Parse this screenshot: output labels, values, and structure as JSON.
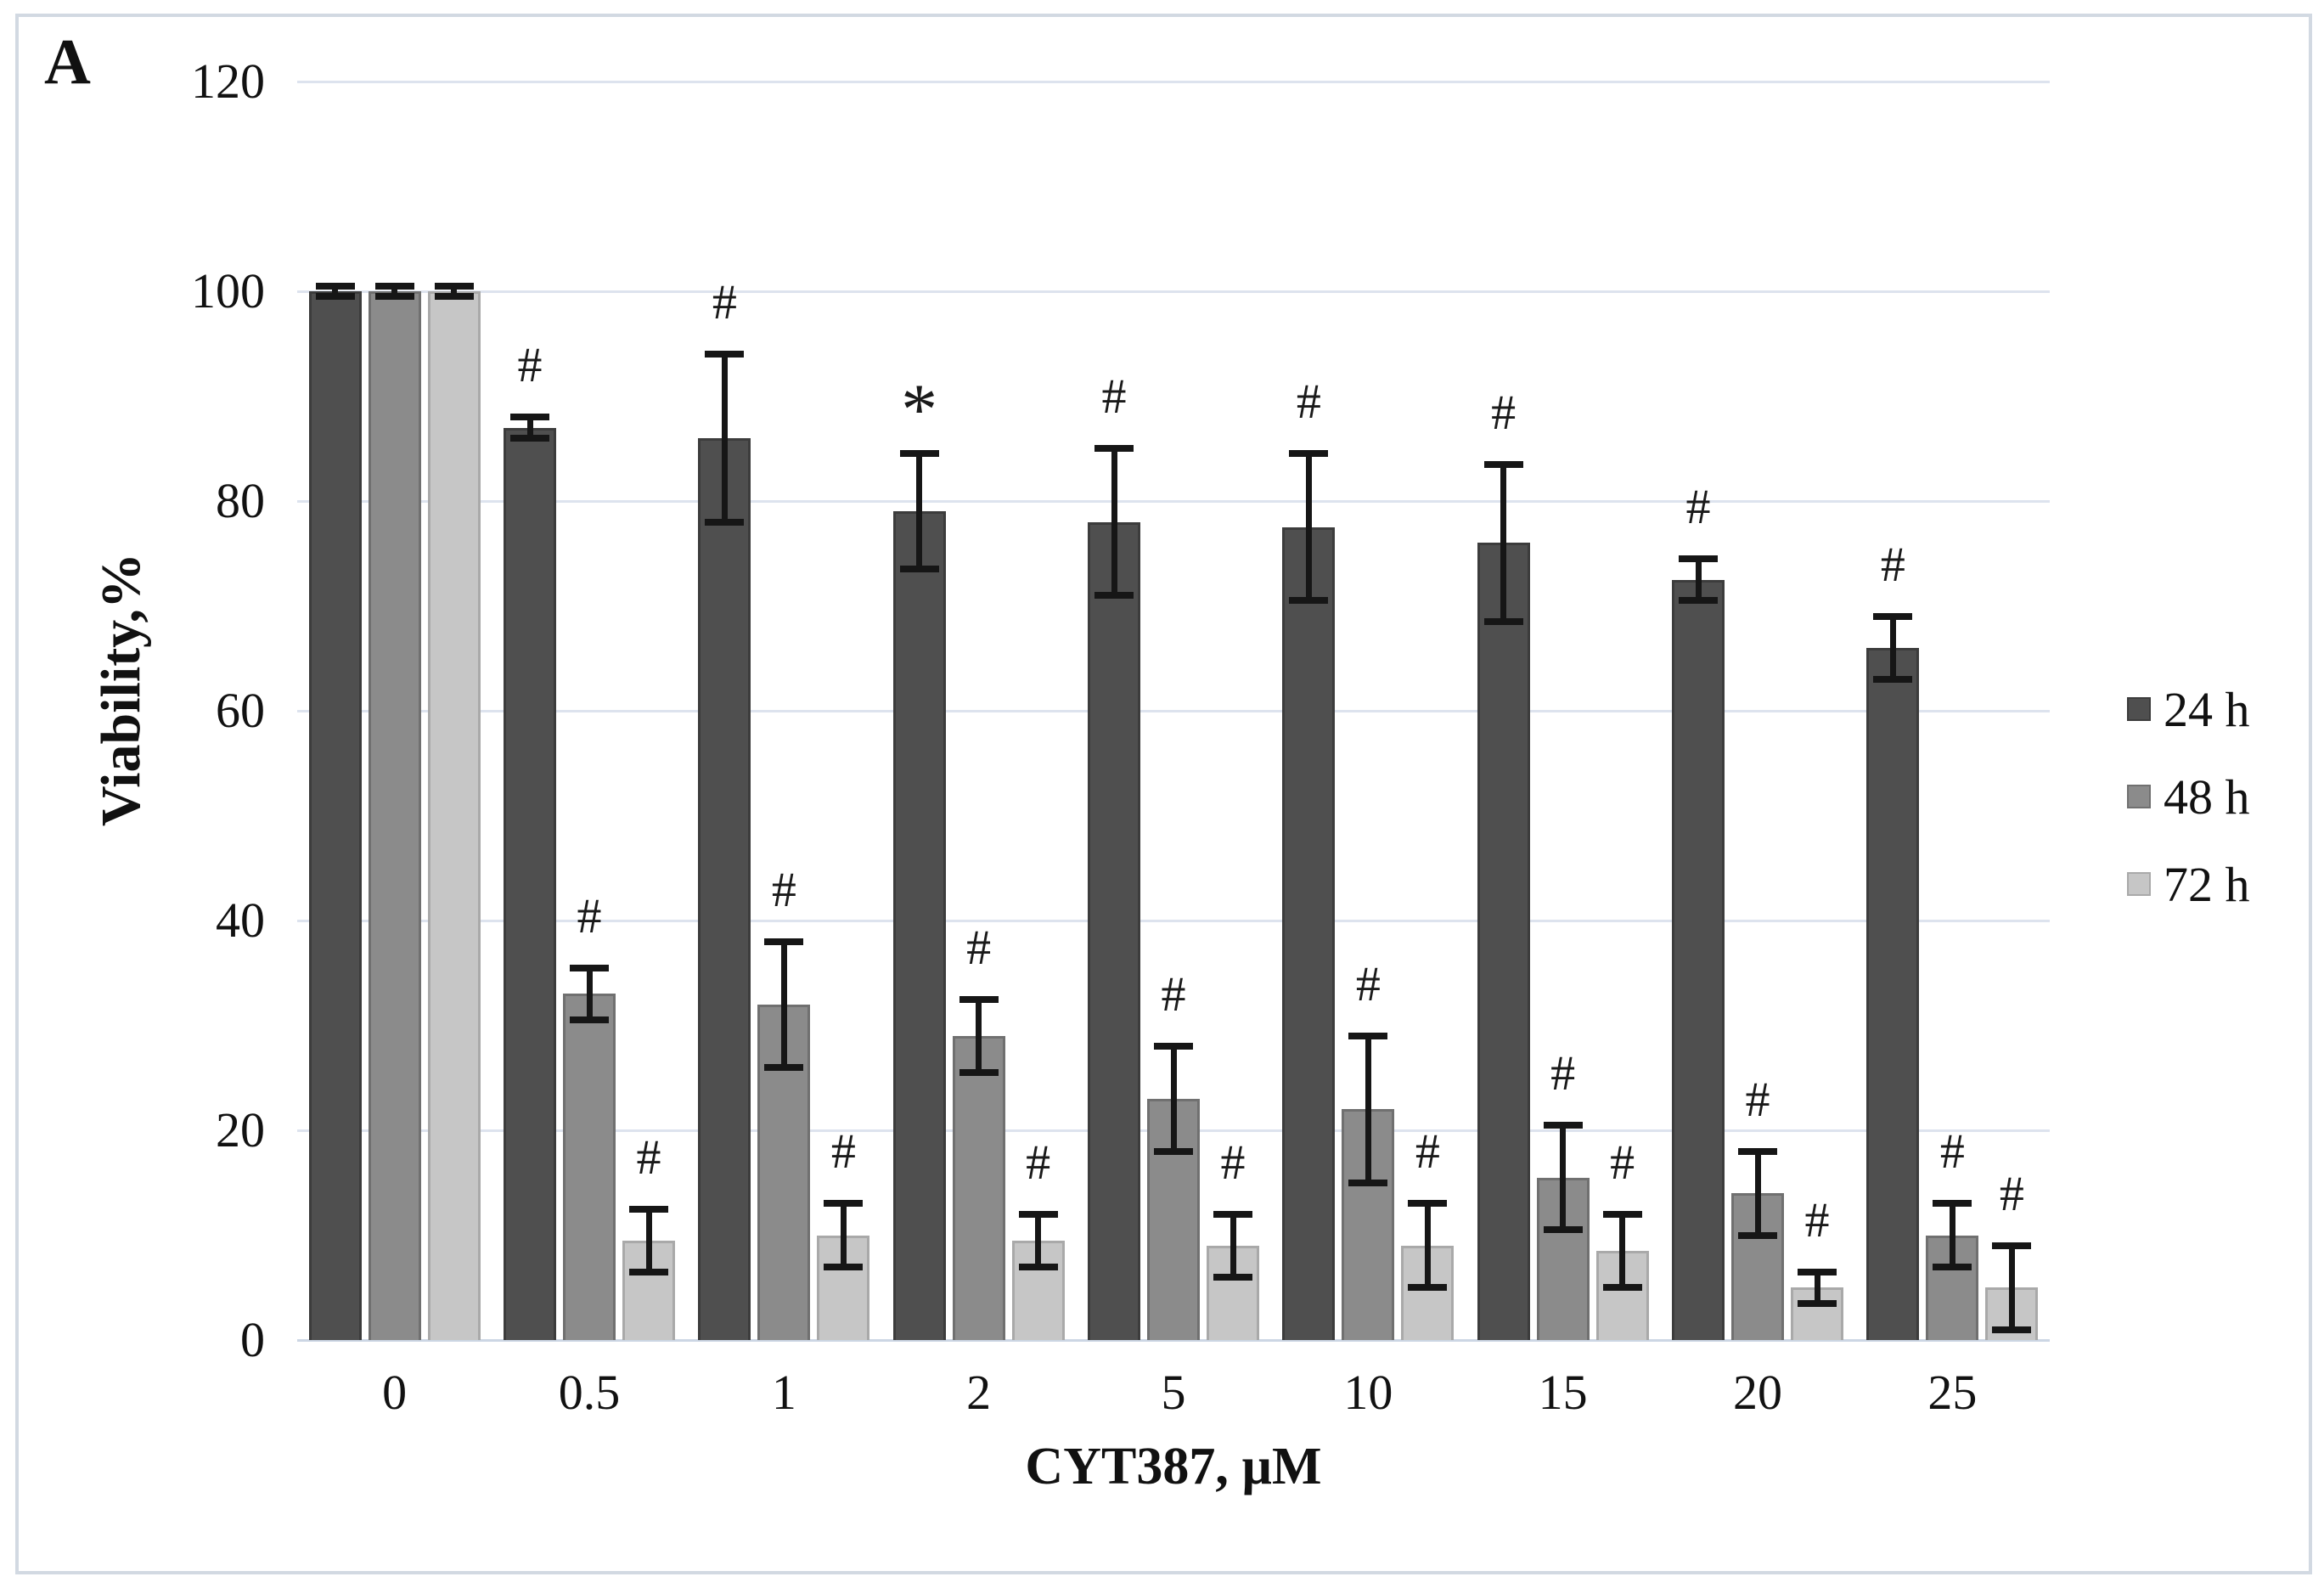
{
  "figure": {
    "panel_label": "A"
  },
  "chart_data": {
    "type": "bar",
    "title": "",
    "xlabel": "CYT387, µM",
    "ylabel": "Viability,%",
    "ylim": [
      0,
      120
    ],
    "yticks": [
      0,
      20,
      40,
      60,
      80,
      100,
      120
    ],
    "grid": true,
    "legend_position": "center-right",
    "categories": [
      "0",
      "0.5",
      "1",
      "2",
      "5",
      "10",
      "15",
      "20",
      "25"
    ],
    "series": [
      {
        "name": "24 h",
        "color": "#4f4f4f",
        "edge": "#3c3c3c",
        "values": [
          100,
          87,
          86,
          79,
          78,
          77.5,
          76,
          72.5,
          66
        ],
        "errors": [
          0.5,
          1,
          8,
          5.5,
          7,
          7,
          7.5,
          2,
          3
        ],
        "annotations": [
          "",
          "#",
          "#",
          "*",
          "#",
          "#",
          "#",
          "#",
          "#"
        ]
      },
      {
        "name": "48 h",
        "color": "#8b8b8b",
        "edge": "#707070",
        "values": [
          100,
          33,
          32,
          29,
          23,
          22,
          15.5,
          14,
          10
        ],
        "errors": [
          0.5,
          2.5,
          6,
          3.5,
          5,
          7,
          5,
          4,
          3
        ],
        "annotations": [
          "",
          "#",
          "#",
          "#",
          "#",
          "#",
          "#",
          "#",
          "#"
        ]
      },
      {
        "name": "72 h",
        "color": "#c6c6c6",
        "edge": "#a9a9a9",
        "values": [
          100,
          9.5,
          10,
          9.5,
          9,
          9,
          8.5,
          5,
          5
        ],
        "errors": [
          0.5,
          3,
          3,
          2.5,
          3,
          4,
          3.5,
          1.5,
          4
        ],
        "annotations": [
          "",
          "#",
          "#",
          "#",
          "#",
          "#",
          "#",
          "#",
          "#"
        ]
      }
    ]
  }
}
